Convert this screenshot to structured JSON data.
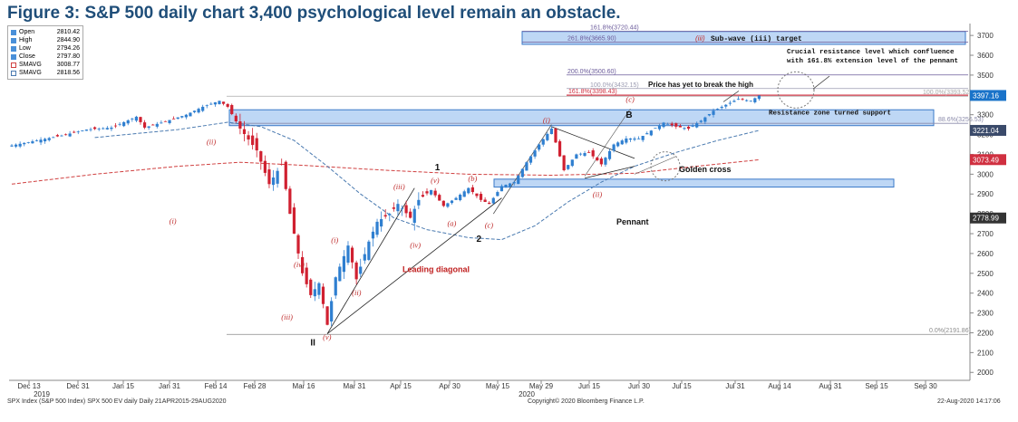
{
  "title": "Figure 3: S&P 500 daily chart 3,400 psychological level remain an obstacle.",
  "legend": {
    "items": [
      {
        "name": "Open",
        "value": "2810.42",
        "color": "#4a90d9"
      },
      {
        "name": "High",
        "value": "2844.90",
        "color": "#4a90d9"
      },
      {
        "name": "Low",
        "value": "2794.26",
        "color": "#4a90d9"
      },
      {
        "name": "Close",
        "value": "2797.80",
        "color": "#4a90d9"
      },
      {
        "name": "SMAVG",
        "value": "3008.77",
        "color": "#d04040"
      },
      {
        "name": "SMAVG",
        "value": "2818.56",
        "color": "#4a7ab0"
      }
    ]
  },
  "footer": {
    "left": "SPX Index (S&P 500 Index) SPX 500 EV daily  Daily 21APR2015-29AUG2020",
    "center": "Copyright© 2020 Bloomberg Finance L.P.",
    "right": "22-Aug-2020 14:17:06"
  },
  "chart_data": {
    "type": "candlestick",
    "y_ticks": [
      2000,
      2100,
      2200,
      2300,
      2400,
      2500,
      2600,
      2700,
      2800,
      2900,
      3000,
      3100,
      3200,
      3300,
      3400,
      3500,
      3600,
      3700
    ],
    "ylim": [
      1960,
      3760
    ],
    "x_ticks": [
      "Dec 13",
      "Dec 31",
      "Jan 15",
      "Jan 31",
      "Feb 14",
      "Feb 28",
      "Mar 16",
      "Mar 31",
      "Apr 15",
      "Apr 30",
      "May 15",
      "May 29",
      "Jun 15",
      "Jun 30",
      "Jul 15",
      "Jul 31",
      "Aug 14",
      "Aug 31",
      "Sep 15",
      "Sep 30"
    ],
    "year_labels": [
      {
        "text": "2019",
        "under": "Dec 13"
      },
      {
        "text": "2020",
        "under": "May 29"
      }
    ],
    "price_badges": [
      {
        "text": "3397.16",
        "value": 3397.16,
        "color": "#1a73c9"
      },
      {
        "text": "3221.04",
        "value": 3221.04,
        "color": "#3a4a6a"
      },
      {
        "text": "3073.49",
        "value": 3073.49,
        "color": "#d03040"
      },
      {
        "text": "2778.99",
        "value": 2778.99,
        "color": "#333333"
      }
    ],
    "fib_levels": [
      {
        "text": "161.8%(3720.44)",
        "value": 3720.44
      },
      {
        "text": "261.8%(3665.90)",
        "value": 3665.9
      },
      {
        "text": "200.0%(3500.60)",
        "value": 3500.6
      },
      {
        "text": "100.0%(3432.15)",
        "value": 3432.15
      },
      {
        "text": "161.8%(3398.43)",
        "value": 3398.43
      },
      {
        "text": "100.0%(3393.52)",
        "value": 3393.52
      },
      {
        "text": "88.6%(3256.53)",
        "value": 3256.53
      },
      {
        "text": "0.0%(2191.86)",
        "value": 2191.86
      }
    ],
    "zones": [
      {
        "from": 3655,
        "to": 3720
      },
      {
        "from": 3245,
        "to": 3325
      },
      {
        "from": 2935,
        "to": 2975
      }
    ],
    "annotations": {
      "subwave": "(iii)",
      "subwave_target": "Sub-wave (iii) target",
      "crucial": "Crucial resistance level which confluence",
      "crucial2": "with 161.8% extension level of the pennant",
      "break_high": "Price has yet to break the high",
      "resistance_support": "Resistance zone turned support",
      "golden_cross": "Golden cross",
      "pennant": "Pennant",
      "leading_diagonal": "Leading diagonal"
    },
    "wave_labels": [
      {
        "text": "(ii)",
        "kind": "red",
        "date": 48,
        "price": 3150
      },
      {
        "text": "(i)",
        "kind": "red",
        "date": 39,
        "price": 2750
      },
      {
        "text": "(iv)",
        "kind": "red",
        "date": 69,
        "price": 2530
      },
      {
        "text": "(iii)",
        "kind": "red",
        "date": 66,
        "price": 2265
      },
      {
        "text": "(v)",
        "kind": "red",
        "date": 76,
        "price": 2165
      },
      {
        "text": "II",
        "kind": "black",
        "date": 73,
        "price": 2135
      },
      {
        "text": "(i)",
        "kind": "red",
        "date": 78,
        "price": 2655
      },
      {
        "text": "(ii)",
        "kind": "red",
        "date": 83,
        "price": 2390
      },
      {
        "text": "(iii)",
        "kind": "red",
        "date": 93,
        "price": 2925
      },
      {
        "text": "(iv)",
        "kind": "red",
        "date": 97,
        "price": 2630
      },
      {
        "text": "(v)",
        "kind": "red",
        "date": 102,
        "price": 2955
      },
      {
        "text": "1",
        "kind": "black",
        "date": 103,
        "price": 3020
      },
      {
        "text": "(a)",
        "kind": "red",
        "date": 106,
        "price": 2740
      },
      {
        "text": "(b)",
        "kind": "red",
        "date": 111,
        "price": 2965
      },
      {
        "text": "(c)",
        "kind": "red",
        "date": 115,
        "price": 2730
      },
      {
        "text": "2",
        "kind": "black",
        "date": 113,
        "price": 2660
      },
      {
        "text": "(i)",
        "kind": "red",
        "date": 129,
        "price": 3260
      },
      {
        "text": "(ii)",
        "kind": "red",
        "date": 141,
        "price": 2885
      },
      {
        "text": "(c)",
        "kind": "red",
        "date": 149,
        "price": 3365
      },
      {
        "text": "B",
        "kind": "black",
        "date": 149,
        "price": 3285
      }
    ]
  }
}
